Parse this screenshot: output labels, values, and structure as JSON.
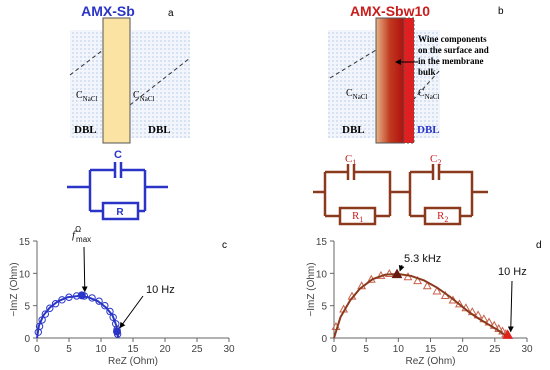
{
  "diagrams": {
    "a": {
      "title": "AMX-Sb",
      "panel_label": "a",
      "conc_left": {
        "main": "C",
        "sub": "NaCl"
      },
      "conc_right": {
        "main": "C",
        "sub": "NaCl"
      },
      "dbl_left": "DBL",
      "dbl_right": "DBL",
      "capacitor": "C",
      "resistor": "R"
    },
    "b": {
      "title": "AMX-Sbw10",
      "panel_label": "b",
      "note": [
        "Wine components",
        "on the surface and",
        "in the membrane",
        "bulk"
      ],
      "conc_left": {
        "main": "C",
        "sub": "NaCl"
      },
      "conc_right": {
        "main": "C",
        "sub": "NaCl"
      },
      "dbl_left": "DBL",
      "dbl_right": "DBL",
      "capacitor_1": {
        "main": "C",
        "sub": "1"
      },
      "capacitor_2": {
        "main": "C",
        "sub": "2"
      },
      "resistor_1": {
        "main": "R",
        "sub": "1"
      },
      "resistor_2": {
        "main": "R",
        "sub": "2"
      }
    }
  },
  "chart_data": [
    {
      "type": "scatter",
      "panel_label": "c",
      "x_label": "ReZ (Ohm)",
      "y_label": "−ImZ (Ohm)",
      "xlim": [
        0,
        30
      ],
      "xticks": [
        0,
        5,
        10,
        15,
        20,
        25,
        30
      ],
      "ylim": [
        0,
        15
      ],
      "yticks": [
        0,
        5,
        10,
        15
      ],
      "series": [
        {
          "marker": "circle",
          "color": "#2a35c8",
          "x": [
            0.2,
            0.4,
            0.8,
            1.3,
            2.0,
            2.9,
            3.9,
            5.0,
            6.2,
            7.4,
            8.6,
            9.7,
            10.6,
            11.4,
            11.9,
            12.3,
            12.5,
            12.6
          ],
          "values": [
            0.9,
            1.8,
            2.8,
            3.7,
            4.6,
            5.3,
            5.9,
            6.3,
            6.5,
            6.5,
            6.2,
            5.7,
            5.0,
            4.1,
            3.2,
            2.2,
            1.3,
            0.6
          ]
        },
        {
          "marker": "line",
          "color": "#2a35c8",
          "x": [
            0,
            0.3,
            1.0,
            2.0,
            3.3,
            4.8,
            6.4,
            8.0,
            9.5,
            10.8,
            11.8,
            12.4,
            12.7
          ],
          "values": [
            0,
            1.9,
            3.5,
            4.7,
            5.7,
            6.3,
            6.5,
            6.3,
            5.7,
            4.7,
            3.5,
            1.9,
            0
          ]
        }
      ],
      "annotations": [
        {
          "text": {
            "main": "f",
            "sup": "Ω",
            "sub": "max"
          },
          "x": 7,
          "y": 6.6,
          "color": "#2a35c8"
        },
        {
          "text": "10 Hz",
          "x": 12.5,
          "y": 1.0,
          "color": "#2a35c8"
        }
      ]
    },
    {
      "type": "scatter",
      "panel_label": "d",
      "x_label": "ReZ (Ohm)",
      "y_label": "−ImZ (Ohm)",
      "xlim": [
        0,
        30
      ],
      "xticks": [
        0,
        5,
        10,
        15,
        20,
        25,
        30
      ],
      "ylim": [
        0,
        15
      ],
      "yticks": [
        0,
        5,
        10,
        15
      ],
      "series": [
        {
          "marker": "triangle",
          "color": "#c8604a",
          "x": [
            0.3,
            1.5,
            2.8,
            4.3,
            5.8,
            7.3,
            8.6,
            11.5,
            13.0,
            14.5,
            16.0,
            17.3,
            18.5,
            19.5,
            20.5,
            21.5,
            22.4,
            23.3,
            24.1,
            24.9,
            25.6,
            26.2,
            26.7
          ],
          "values": [
            1.7,
            4.4,
            6.4,
            8.0,
            9.0,
            9.6,
            9.9,
            9.4,
            8.8,
            8.0,
            7.2,
            6.5,
            5.8,
            5.2,
            4.6,
            4.0,
            3.5,
            2.9,
            2.4,
            1.9,
            1.4,
            1.0,
            0.6
          ]
        },
        {
          "marker": "line",
          "color": "#8b3a1e",
          "x": [
            0,
            1,
            2.5,
            4,
            6,
            8,
            10,
            12,
            14,
            16,
            18,
            19.5,
            21,
            22.5,
            24,
            25.5,
            26.5,
            27.2
          ],
          "values": [
            0,
            3.2,
            5.8,
            7.6,
            9.1,
            9.8,
            9.9,
            9.6,
            8.9,
            7.8,
            6.4,
            5.2,
            4.0,
            3.0,
            2.1,
            1.2,
            0.5,
            0
          ]
        }
      ],
      "annotations": [
        {
          "text": "5.3 kHz",
          "x": 9.8,
          "y": 9.8,
          "color": "#6b1a10"
        },
        {
          "text": "10 Hz",
          "x": 27,
          "y": 0.4,
          "color": "#e0201a"
        }
      ]
    }
  ]
}
